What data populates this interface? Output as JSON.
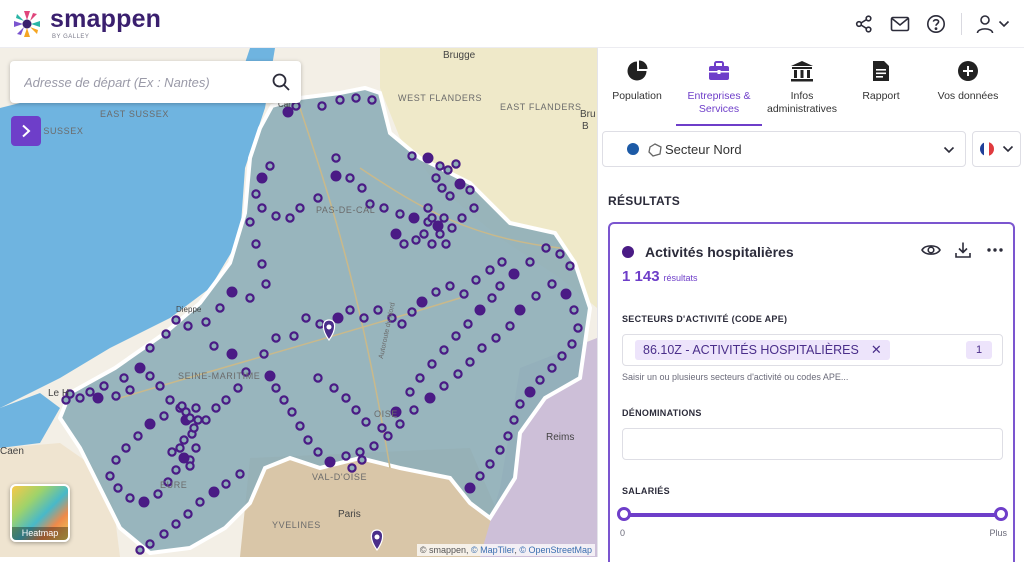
{
  "app": {
    "name": "smappen",
    "sub": "BY GALLEY"
  },
  "header": {
    "icons": [
      "share-icon",
      "mail-icon",
      "help-icon",
      "user-icon",
      "chevron-down-icon"
    ]
  },
  "map": {
    "search_placeholder": "Adresse de départ (Ex : Nantes)",
    "heatmap_label": "Heatmap",
    "attribution": {
      "prefix": "© smappen, ",
      "maptiler": "© MapTiler",
      "sep": ", ",
      "osm": "© OpenStreetMap"
    },
    "labels": {
      "brugge": "Brugge",
      "west_flanders": "WEST FLANDERS",
      "east_flanders": "EAST FLANDERS",
      "east_sussex": "EAST SUSSEX",
      "west_sussex": "WEST SUSSEX",
      "pas_de_calais": "PAS-DE-CAL",
      "seine_maritime": "SEINE-MARITIME",
      "eure": "EURE",
      "oise": "OISE",
      "val_doise": "VAL-D'OISE",
      "yvelines": "YVELINES",
      "paris": "Paris",
      "reims": "Reims",
      "caen": "Caen",
      "le_havre": "Le H",
      "dieppe": "Dieppe",
      "autoroute": "Autoroute du Nord",
      "calais": "Cal",
      "bru": "Bru",
      "b": "B"
    },
    "colors": {
      "sea": "#6fb4e0",
      "land": "#f3efe6",
      "zone": "#8eaeb8",
      "marker": "#4a1b85"
    }
  },
  "panel": {
    "tabs": [
      {
        "label": "Population",
        "icon": "pie-chart-icon",
        "active": false
      },
      {
        "label": "Entreprises & Services",
        "icon": "briefcase-icon",
        "active": true
      },
      {
        "label": "Infos administratives",
        "icon": "bank-icon",
        "active": false
      },
      {
        "label": "Rapport",
        "icon": "document-icon",
        "active": false
      },
      {
        "label": "Vos données",
        "icon": "plus-circle-icon",
        "active": false
      }
    ],
    "sector": {
      "name": "Secteur Nord",
      "color": "#1c5aa6"
    },
    "language": {
      "flag": "fr"
    },
    "results_title": "RÉSULTATS",
    "card": {
      "title": "Activités hospitalières",
      "dot_color": "#4a1b85",
      "count": "1 143",
      "count_unit": "résultats",
      "ape_label": "SECTEURS D'ACTIVITÉ (CODE APE)",
      "ape_tag": "86.10Z - ACTIVITÉS HOSPITALIÈRES",
      "ape_tag_count": "1",
      "ape_hint": "Saisir un ou plusieurs secteurs d'activité ou codes APE...",
      "denominations_label": "DÉNOMINATIONS",
      "denominations_value": "",
      "salaries_label": "SALARIÉS",
      "salaries_min": "0",
      "salaries_max": "Plus"
    }
  }
}
